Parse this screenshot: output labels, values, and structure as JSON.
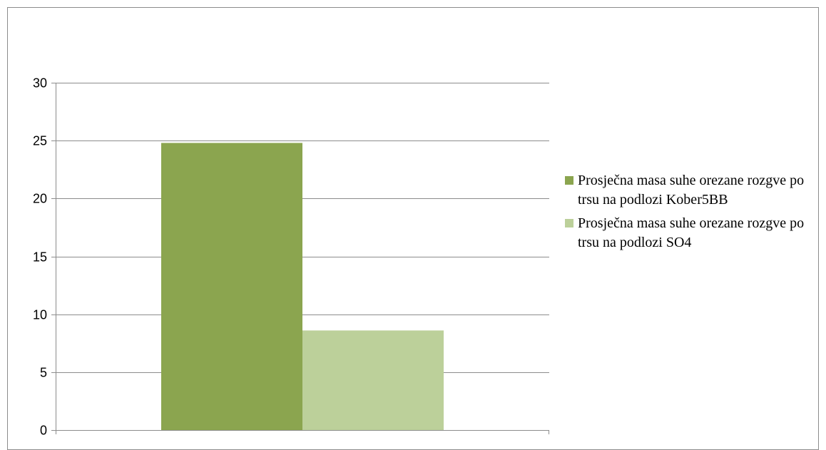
{
  "chart_data": {
    "type": "bar",
    "categories": [
      ""
    ],
    "series": [
      {
        "name": "Prosječna masa suhe orezane rozgve po trsu na podlozi Kober5BB",
        "values": [
          24.8
        ],
        "color": "#8BA54F"
      },
      {
        "name": "Prosječna masa suhe orezane rozgve po trsu na podlozi SO4",
        "values": [
          8.6
        ],
        "color": "#BCD09A"
      }
    ],
    "title": "",
    "xlabel": "",
    "ylabel": "",
    "ylim": [
      0,
      30
    ],
    "yticks": [
      0,
      5,
      10,
      15,
      20,
      25,
      30
    ],
    "ytick_labels": [
      "0",
      "5",
      "10",
      "15",
      "20",
      "25",
      "30"
    ],
    "grid": true,
    "legend_position": "right",
    "colors": {
      "gridline": "#8c8c8c",
      "axis": "#8c8c8c",
      "frame": "#8c8c8c"
    }
  }
}
